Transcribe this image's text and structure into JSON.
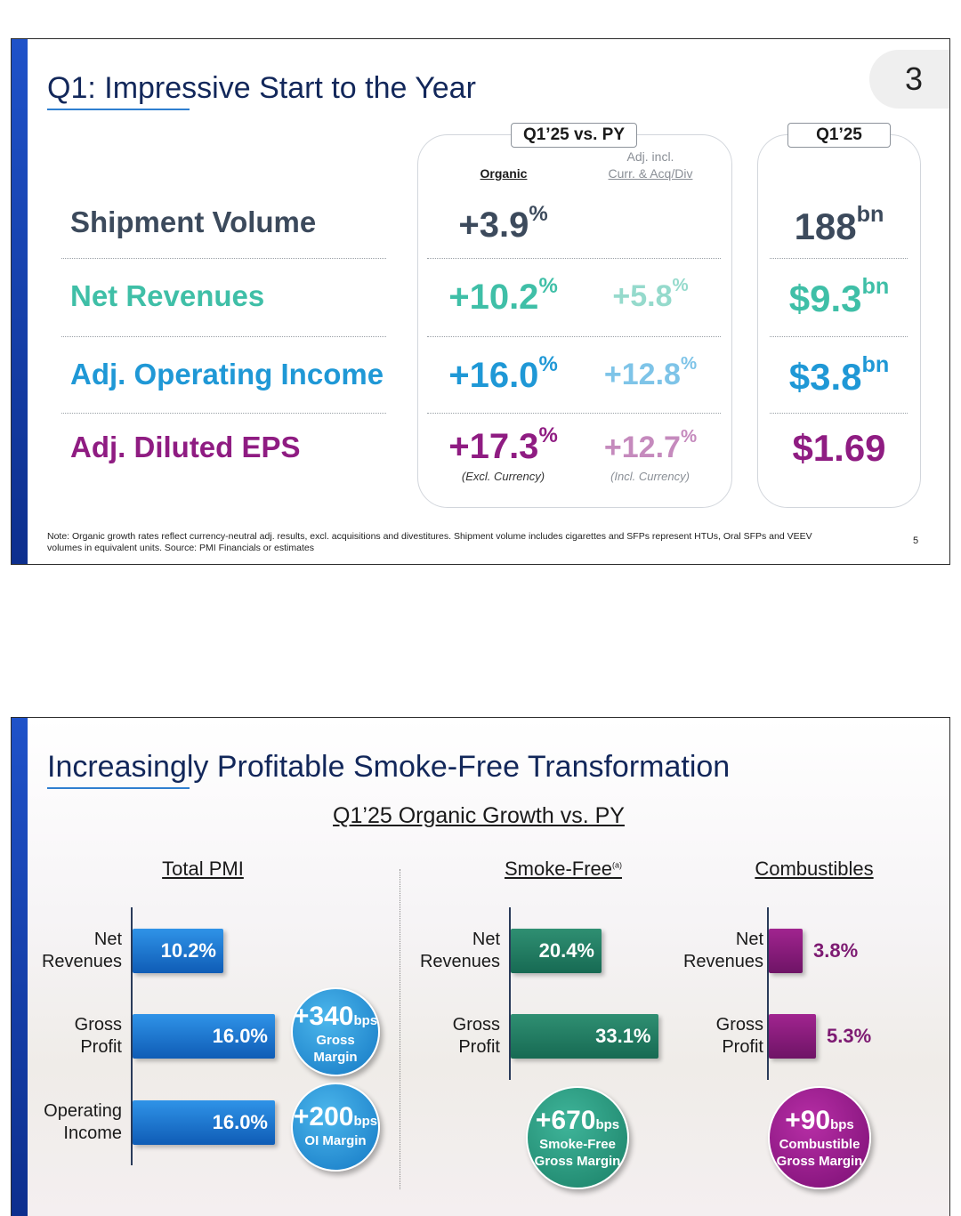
{
  "slide1": {
    "title": "Q1: Impressive Start to the Year",
    "page_badge": "3",
    "box_left_tag": "Q1’25 vs. PY",
    "box_right_tag": "Q1’25",
    "col_organic": "Organic",
    "col_adj_line1": "Adj. incl.",
    "col_adj_line2": "Curr. & Acq/Div",
    "rows": [
      {
        "label": "Shipment Volume",
        "organic": "+3.9",
        "organic_unit": "%",
        "adj": "",
        "adj_unit": "",
        "q1": "188",
        "q1_unit": "bn",
        "color": "#3c4a5c",
        "adj_color": "#3c4a5c"
      },
      {
        "label": "Net Revenues",
        "organic": "+10.2",
        "organic_unit": "%",
        "adj": "+5.8",
        "adj_unit": "%",
        "q1": "$9.3",
        "q1_unit": "bn",
        "color": "#3fbfa7",
        "adj_color": "#95dacc"
      },
      {
        "label": "Adj. Operating Income",
        "organic": "+16.0",
        "organic_unit": "%",
        "adj": "+12.8",
        "adj_unit": "%",
        "q1": "$3.8",
        "q1_unit": "bn",
        "color": "#1f98d6",
        "adj_color": "#7ec4e8"
      },
      {
        "label": "Adj. Diluted EPS",
        "organic": "+17.3",
        "organic_unit": "%",
        "adj": "+12.7",
        "adj_unit": "%",
        "q1": "$1.69",
        "q1_unit": "",
        "color": "#8f1c82",
        "adj_color": "#c58abd"
      }
    ],
    "eps_note_left": "(Excl. Currency)",
    "eps_note_right": "(Incl. Currency)",
    "note_line1": "Note: Organic growth rates reflect currency-neutral adj. results, excl. acquisitions and divestitures. Shipment volume includes cigarettes and SFPs represent HTUs, Oral SFPs and VEEV",
    "note_line2": "volumes in equivalent units. Source: PMI Financials or estimates",
    "page_number": "5"
  },
  "slide2": {
    "title": "Increasingly Profitable Smoke-Free Transformation",
    "subtitle": "Q1’25 Organic Growth vs. PY",
    "groups": [
      {
        "title": "Total PMI",
        "title_sup": "",
        "labels": [
          [
            "Net",
            "Revenues"
          ],
          [
            "Gross",
            "Profit"
          ],
          [
            "Operating",
            "Income"
          ]
        ],
        "values": [
          "10.2%",
          "16.0%",
          "16.0%"
        ]
      },
      {
        "title": "Smoke-Free",
        "title_sup": "(a)",
        "labels": [
          [
            "Net",
            "Revenues"
          ],
          [
            "Gross",
            "Profit"
          ]
        ],
        "values": [
          "20.4%",
          "33.1%"
        ]
      },
      {
        "title": "Combustibles",
        "title_sup": "",
        "labels": [
          [
            "Net",
            "Revenues"
          ],
          [
            "Gross",
            "Profit"
          ]
        ],
        "values": [
          "3.8%",
          "5.3%"
        ]
      }
    ],
    "circles": [
      {
        "big": "+340",
        "unit": "bps",
        "l1": "Gross",
        "l2": "Margin"
      },
      {
        "big": "+200",
        "unit": "bps",
        "l1": "OI Margin",
        "l2": ""
      },
      {
        "big": "+670",
        "unit": "bps",
        "l1": "Smoke-Free",
        "l2": "Gross Margin"
      },
      {
        "big": "+90",
        "unit": "bps",
        "l1": "Combustible",
        "l2": "Gross Margin"
      }
    ],
    "colors": {
      "blue": "#1670c8",
      "green": "#1f7f63",
      "purple": "#8a1a7e"
    }
  },
  "chart_data": [
    {
      "type": "bar",
      "title": "Total PMI",
      "categories": [
        "Net Revenues",
        "Gross Profit",
        "Operating Income"
      ],
      "values": [
        10.2,
        16.0,
        16.0
      ]
    },
    {
      "type": "bar",
      "title": "Smoke-Free",
      "categories": [
        "Net Revenues",
        "Gross Profit"
      ],
      "values": [
        20.4,
        33.1
      ]
    },
    {
      "type": "bar",
      "title": "Combustibles",
      "categories": [
        "Net Revenues",
        "Gross Profit"
      ],
      "values": [
        3.8,
        5.3
      ]
    }
  ]
}
